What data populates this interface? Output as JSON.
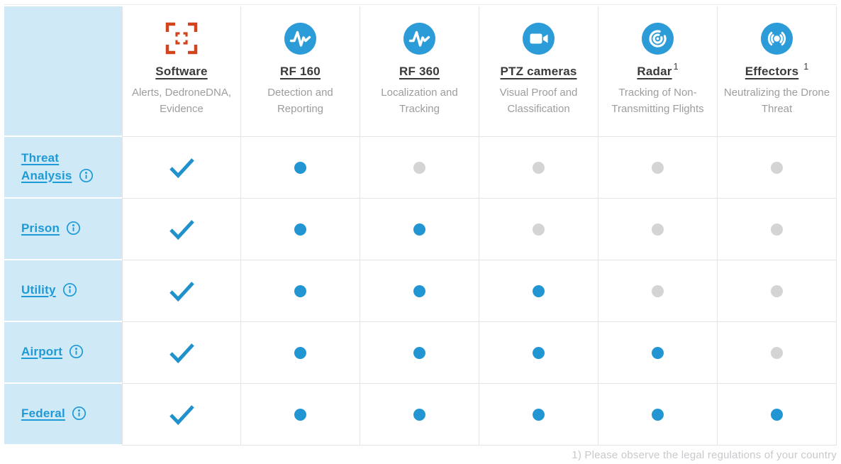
{
  "table": {
    "products": [
      {
        "name": "Software",
        "superscript": "",
        "subtitle": "Alerts, DedroneDNA, Evidence",
        "icon": "focus-frame-icon"
      },
      {
        "name": "RF 160",
        "superscript": "",
        "subtitle": "Detection and Reporting",
        "icon": "rf-sensor-icon"
      },
      {
        "name": "RF 360",
        "superscript": "",
        "subtitle": "Localization and Tracking",
        "icon": "rf-sensor-icon"
      },
      {
        "name": "PTZ cameras",
        "superscript": "",
        "subtitle": "Visual Proof and Classification",
        "icon": "video-camera-icon"
      },
      {
        "name": "Radar",
        "superscript": "1",
        "subtitle": "Tracking of Non-Transmitting Flights",
        "icon": "radar-icon"
      },
      {
        "name": "Effectors",
        "superscript": "1",
        "subtitle": "Neutralizing the Drone Threat",
        "icon": "jammer-icon"
      }
    ],
    "rows": [
      {
        "label": "Threat Analysis",
        "cells": [
          "check",
          "on",
          "off",
          "off",
          "off",
          "off"
        ]
      },
      {
        "label": "Prison",
        "cells": [
          "check",
          "on",
          "on",
          "off",
          "off",
          "off"
        ]
      },
      {
        "label": "Utility",
        "cells": [
          "check",
          "on",
          "on",
          "on",
          "off",
          "off"
        ]
      },
      {
        "label": "Airport",
        "cells": [
          "check",
          "on",
          "on",
          "on",
          "on",
          "off"
        ]
      },
      {
        "label": "Federal",
        "cells": [
          "check",
          "on",
          "on",
          "on",
          "on",
          "on"
        ]
      }
    ],
    "footnote": "1) Please observe the legal regulations of your country"
  },
  "colors": {
    "accent_blue": "#2196d3",
    "icon_circle_blue": "#2b9cd8",
    "label_blue": "#1e9ad7",
    "check_blue": "#2191cc",
    "inactive_gray": "#d4d4d4",
    "label_background": "#cfe9f6",
    "grid_border": "#e4e4e4",
    "title_dark": "#3a3a39",
    "subtitle_gray": "#9d9d9c",
    "footnote_gray": "#c9c9cd",
    "software_icon_red": "#d2451c"
  }
}
